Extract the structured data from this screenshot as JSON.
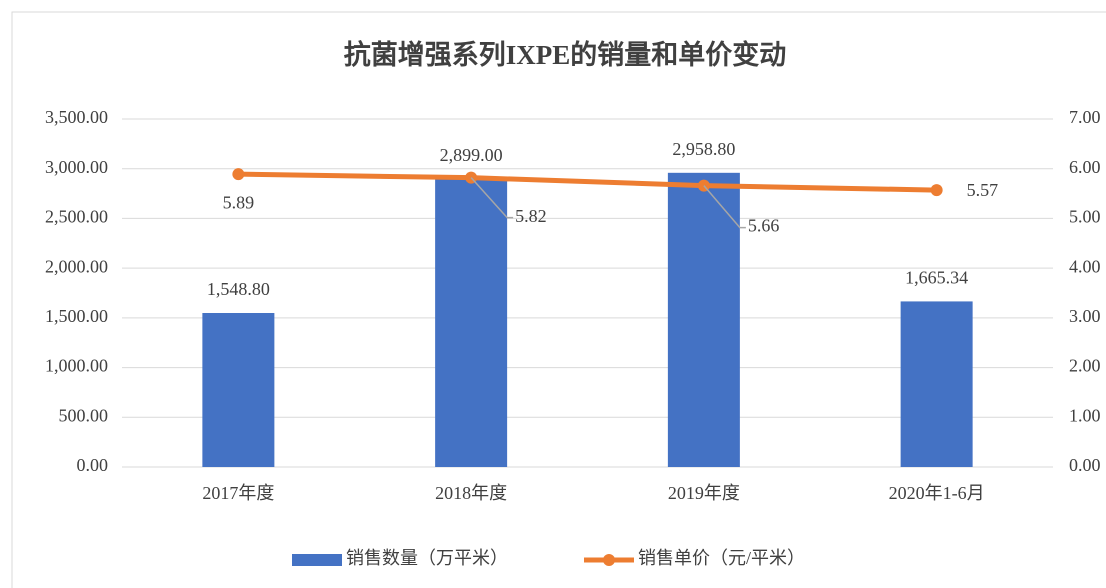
{
  "chart_data": {
    "type": "bar",
    "title": "抗菌增强系列IXPE的销量和单价变动",
    "categories": [
      "2017年度",
      "2018年度",
      "2019年度",
      "2020年1-6月"
    ],
    "series": [
      {
        "name": "销售数量（万平米）",
        "type": "bar",
        "color": "#4472c4",
        "values": [
          1548.8,
          2899,
          2958.8,
          1665.34
        ],
        "value_labels": [
          "1,548.80",
          "2,899.00",
          "2,958.80",
          "1,665.34"
        ]
      },
      {
        "name": "销售单价（元/平米）",
        "type": "line",
        "axis": "y2",
        "color": "#ed7d31",
        "values": [
          5.89,
          5.82,
          5.66,
          5.57
        ]
      }
    ],
    "ylim": [
      0,
      3500
    ],
    "yticks": [
      {
        "value": 0,
        "label": "0.00"
      },
      {
        "value": 500,
        "label": "500.00"
      },
      {
        "value": 1000,
        "label": "1,000.00"
      },
      {
        "value": 1500,
        "label": "1,500.00"
      },
      {
        "value": 2000,
        "label": "2,000.00"
      },
      {
        "value": 2500,
        "label": "2,500.00"
      },
      {
        "value": 3000,
        "label": "3,000.00"
      },
      {
        "value": 3500,
        "label": "3,500.00"
      }
    ],
    "y2lim": [
      0,
      7
    ],
    "y2ticks": [
      {
        "value": 0,
        "label": "0.00"
      },
      {
        "value": 1,
        "label": "1.00"
      },
      {
        "value": 2,
        "label": "2.00"
      },
      {
        "value": 3,
        "label": "3.00"
      },
      {
        "value": 4,
        "label": "4.00"
      },
      {
        "value": 5,
        "label": "5.00"
      },
      {
        "value": 6,
        "label": "6.00"
      },
      {
        "value": 7,
        "label": "7.00"
      }
    ],
    "grid": true,
    "legend": "bottom"
  }
}
